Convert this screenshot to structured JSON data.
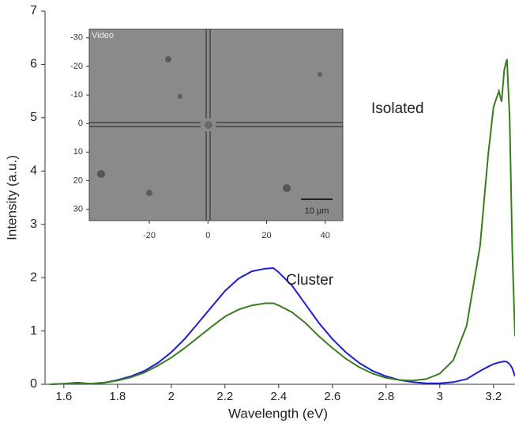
{
  "chart_data": {
    "type": "line",
    "xlabel": "Wavelength (eV)",
    "ylabel": "Intensity (a.u.)",
    "x": [
      1.55,
      1.6,
      1.65,
      1.7,
      1.75,
      1.8,
      1.85,
      1.9,
      1.95,
      2.0,
      2.05,
      2.1,
      2.15,
      2.2,
      2.25,
      2.3,
      2.35,
      2.38,
      2.4,
      2.45,
      2.5,
      2.55,
      2.6,
      2.65,
      2.7,
      2.75,
      2.8,
      2.85,
      2.9,
      2.95,
      3.0,
      3.05,
      3.1,
      3.15,
      3.18,
      3.2,
      3.22,
      3.23,
      3.24,
      3.25,
      3.26,
      3.27,
      3.28
    ],
    "series": [
      {
        "name": "Cluster",
        "color": "#1f1fd0",
        "values": [
          0,
          0.01,
          0.03,
          0.01,
          0.03,
          0.08,
          0.15,
          0.25,
          0.4,
          0.6,
          0.85,
          1.15,
          1.45,
          1.75,
          1.98,
          2.12,
          2.17,
          2.18,
          2.1,
          1.85,
          1.5,
          1.15,
          0.85,
          0.6,
          0.4,
          0.25,
          0.15,
          0.08,
          0.04,
          0.02,
          0.02,
          0.04,
          0.1,
          0.25,
          0.33,
          0.38,
          0.41,
          0.42,
          0.43,
          0.42,
          0.38,
          0.3,
          0.15
        ]
      },
      {
        "name": "Isolated",
        "color": "#3a7d1e",
        "values": [
          0,
          0.01,
          0.02,
          0.01,
          0.03,
          0.07,
          0.13,
          0.22,
          0.35,
          0.5,
          0.68,
          0.88,
          1.08,
          1.27,
          1.4,
          1.48,
          1.52,
          1.52,
          1.48,
          1.35,
          1.15,
          0.9,
          0.68,
          0.48,
          0.32,
          0.2,
          0.12,
          0.08,
          0.07,
          0.1,
          0.2,
          0.45,
          1.1,
          2.6,
          4.3,
          5.2,
          5.5,
          5.3,
          5.9,
          6.1,
          5.0,
          2.5,
          0.9
        ]
      }
    ],
    "xlim": [
      1.53,
      3.28
    ],
    "ylim": [
      0,
      7
    ],
    "xticks": [
      1.6,
      1.8,
      2,
      2.2,
      2.4,
      2.6,
      2.8,
      3,
      3.2
    ],
    "yticks": [
      0,
      1,
      2,
      3,
      4,
      5,
      6,
      7
    ],
    "inset": {
      "label": "Video",
      "scale_bar": "10 µm",
      "xlim": [
        -40.5,
        46
      ],
      "ylim": [
        -33,
        34
      ],
      "xticks": [
        -20,
        0,
        20,
        40
      ],
      "yticks": [
        -30,
        -20,
        -10,
        0,
        10,
        20,
        30
      ]
    }
  }
}
